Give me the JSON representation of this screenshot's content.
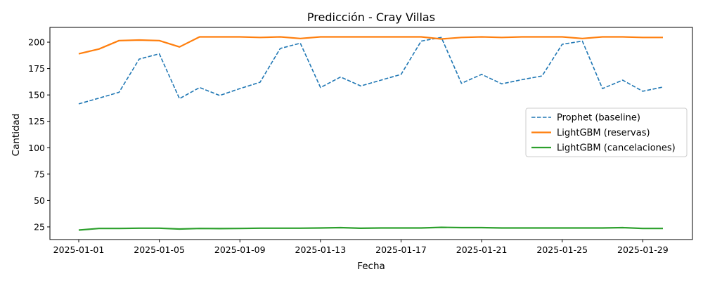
{
  "chart_data": {
    "type": "line",
    "title": "Predicción - Cray Villas",
    "xlabel": "Fecha",
    "ylabel": "Cantidad",
    "x": [
      "2025-01-01",
      "2025-01-02",
      "2025-01-03",
      "2025-01-04",
      "2025-01-05",
      "2025-01-06",
      "2025-01-07",
      "2025-01-08",
      "2025-01-09",
      "2025-01-10",
      "2025-01-11",
      "2025-01-12",
      "2025-01-13",
      "2025-01-14",
      "2025-01-15",
      "2025-01-16",
      "2025-01-17",
      "2025-01-18",
      "2025-01-19",
      "2025-01-20",
      "2025-01-21",
      "2025-01-22",
      "2025-01-23",
      "2025-01-24",
      "2025-01-25",
      "2025-01-26",
      "2025-01-27",
      "2025-01-28",
      "2025-01-29",
      "2025-01-30"
    ],
    "x_ticks": [
      "2025-01-01",
      "2025-01-05",
      "2025-01-09",
      "2025-01-13",
      "2025-01-17",
      "2025-01-21",
      "2025-01-25",
      "2025-01-29"
    ],
    "y_ticks": [
      25,
      50,
      75,
      100,
      125,
      150,
      175,
      200
    ],
    "ylim": [
      13,
      214
    ],
    "grid": false,
    "legend_position": "center-right",
    "series": [
      {
        "name": "Prophet (baseline)",
        "color": "#1f77b4",
        "style": "dashed",
        "values": [
          141.5,
          147,
          152.5,
          184,
          189,
          146.5,
          157,
          149.5,
          156,
          162,
          194,
          199,
          157,
          167,
          158.5,
          164,
          169.5,
          201,
          204.5,
          161,
          169.5,
          160.5,
          164.5,
          168,
          198,
          201,
          156,
          164,
          153.5,
          157.5
        ]
      },
      {
        "name": "LightGBM (reservas)",
        "color": "#ff7f0e",
        "style": "solid",
        "values": [
          189,
          193.5,
          201.5,
          202,
          201.5,
          195.5,
          205,
          205,
          205,
          204.5,
          205,
          203.5,
          205,
          205,
          205,
          205,
          205,
          205,
          203,
          204.5,
          205,
          204.5,
          205,
          205,
          205,
          203.5,
          205,
          205,
          204.5,
          204.5
        ]
      },
      {
        "name": "LightGBM (cancelaciones)",
        "color": "#2ca02c",
        "style": "solid",
        "values": [
          22,
          23.5,
          23.5,
          23.8,
          23.8,
          23,
          23.5,
          23.4,
          23.5,
          23.8,
          23.8,
          23.8,
          24,
          24.3,
          23.7,
          24,
          24,
          24,
          24.6,
          24.3,
          24.3,
          24,
          24,
          24,
          24,
          24,
          24,
          24.3,
          23.5,
          23.5
        ]
      }
    ]
  }
}
